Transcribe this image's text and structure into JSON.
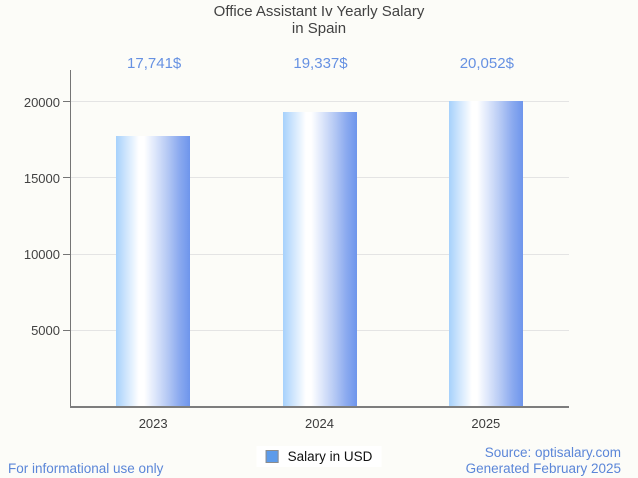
{
  "window": {
    "background": "#fcfcf8"
  },
  "title": {
    "line1": "Office Assistant Iv Yearly Salary",
    "line2": "in Spain"
  },
  "legend": {
    "label": "Salary in USD",
    "swatch_color": "#5d9bea",
    "swatch_border": "#8c8c8c"
  },
  "footer": {
    "left_note": "For informational use only",
    "source": "Source: optisalary.com",
    "generated": "Generated February 2025",
    "text_color": "#5b86d8"
  },
  "chart_data": {
    "type": "bar",
    "title": "Office Assistant Iv Yearly Salary in Spain",
    "categories": [
      "2023",
      "2024",
      "2025"
    ],
    "series": [
      {
        "name": "Salary in USD",
        "values": [
          17741,
          19337,
          20052
        ]
      }
    ],
    "annotations": [
      "17,741$",
      "19,337$",
      "20,052$"
    ],
    "xlabel": "",
    "ylabel": "",
    "ylim": [
      0,
      20000
    ],
    "yticks": [
      5000,
      10000,
      15000,
      20000
    ],
    "grid": true,
    "legend_position": "bottom",
    "colors": {
      "annotation_text": "#6691e2",
      "bar_gradient_left": "#a6d1fc",
      "bar_gradient_highlight": "#ffffff",
      "bar_gradient_right": "#6e95ec",
      "gridline": "#e4e4e4",
      "axis_line": "#757575",
      "tick_text": "#424242"
    }
  }
}
